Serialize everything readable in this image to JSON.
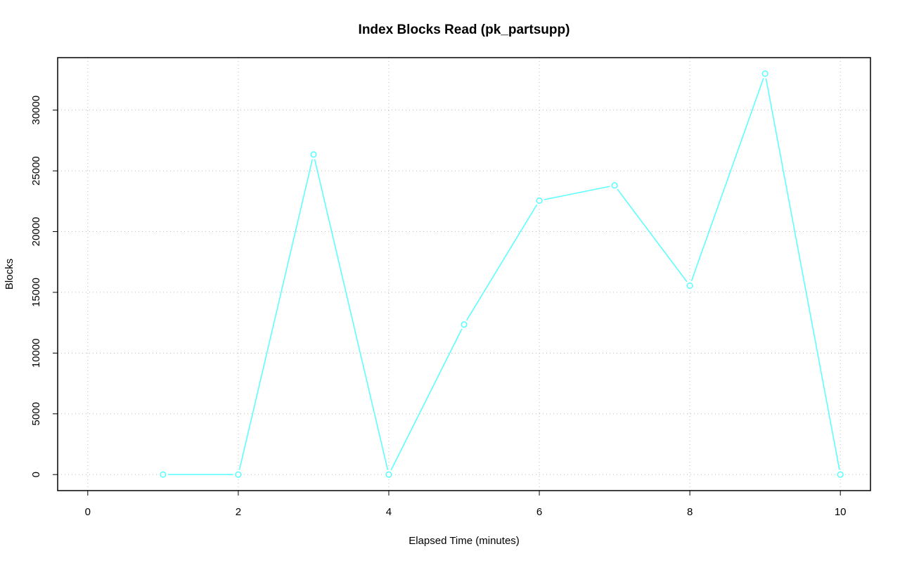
{
  "chart_data": {
    "type": "line",
    "title": "Index Blocks Read (pk_partsupp)",
    "x_label": "Elapsed Time (minutes)",
    "y_label": "Blocks",
    "x": [
      1,
      2,
      3,
      4,
      5,
      6,
      7,
      8,
      9,
      10
    ],
    "series": [
      {
        "color": "#55ffff",
        "values": [
          0,
          0,
          26350,
          0,
          12350,
          22550,
          23800,
          15550,
          33000,
          0
        ]
      }
    ],
    "xlim": [
      -0.4,
      10.4
    ],
    "xticks": [
      0,
      2,
      4,
      6,
      8,
      10
    ],
    "ylim": [
      -1320,
      34320
    ],
    "yticks": [
      0,
      5000,
      10000,
      15000,
      20000,
      25000,
      30000
    ],
    "grid": true
  }
}
